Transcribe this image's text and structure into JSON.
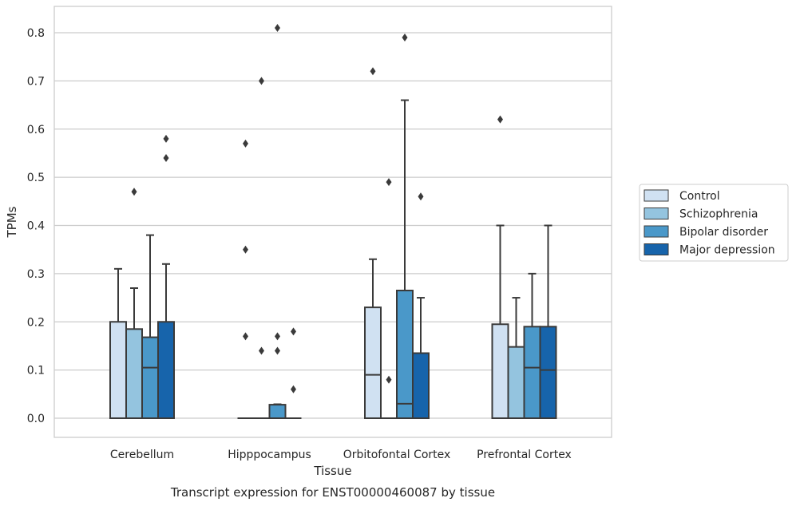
{
  "chart_data": {
    "type": "boxplot",
    "title": "",
    "caption": "Transcript expression for ENST00000460087 by tissue",
    "xlabel": "Tissue",
    "ylabel": "TPMs",
    "categories": [
      "Cerebellum",
      "Hipppocampus",
      "Orbitofontal Cortex",
      "Prefrontal Cortex"
    ],
    "ylim": [
      -0.04,
      0.85
    ],
    "yticks": [
      0.0,
      0.1,
      0.2,
      0.3,
      0.4,
      0.5,
      0.6,
      0.7,
      0.8
    ],
    "ytick_labels": [
      "0.0",
      "0.1",
      "0.2",
      "0.3",
      "0.4",
      "0.5",
      "0.6",
      "0.7",
      "0.8"
    ],
    "grid": true,
    "legend_position": "right",
    "series": [
      {
        "name": "Control",
        "color": "#d0e1f2",
        "boxes": [
          {
            "q1": 0.0,
            "median": 0.0,
            "q3": 0.2,
            "whisker_low": 0.0,
            "whisker_high": 0.31,
            "outliers": []
          },
          {
            "q1": 0.0,
            "median": 0.0,
            "q3": 0.0,
            "whisker_low": 0.0,
            "whisker_high": 0.0,
            "outliers": [
              0.17,
              0.35,
              0.57
            ]
          },
          {
            "q1": 0.0,
            "median": 0.09,
            "q3": 0.23,
            "whisker_low": 0.0,
            "whisker_high": 0.33,
            "outliers": [
              0.72
            ]
          },
          {
            "q1": 0.0,
            "median": 0.0,
            "q3": 0.195,
            "whisker_low": 0.0,
            "whisker_high": 0.4,
            "outliers": [
              0.62
            ]
          }
        ]
      },
      {
        "name": "Schizophrenia",
        "color": "#94c4df",
        "boxes": [
          {
            "q1": 0.0,
            "median": 0.0,
            "q3": 0.185,
            "whisker_low": 0.0,
            "whisker_high": 0.27,
            "outliers": [
              0.47
            ]
          },
          {
            "q1": 0.0,
            "median": 0.0,
            "q3": 0.0,
            "whisker_low": 0.0,
            "whisker_high": 0.0,
            "outliers": [
              0.14,
              0.7
            ]
          },
          {
            "q1": 0.0,
            "median": 0.0,
            "q3": 0.0,
            "whisker_low": 0.0,
            "whisker_high": 0.0,
            "outliers": [
              0.08,
              0.49
            ]
          },
          {
            "q1": 0.0,
            "median": 0.0,
            "q3": 0.148,
            "whisker_low": 0.0,
            "whisker_high": 0.25,
            "outliers": []
          }
        ]
      },
      {
        "name": "Bipolar disorder",
        "color": "#4a98c9",
        "boxes": [
          {
            "q1": 0.0,
            "median": 0.105,
            "q3": 0.168,
            "whisker_low": 0.0,
            "whisker_high": 0.38,
            "outliers": []
          },
          {
            "q1": 0.0,
            "median": 0.0,
            "q3": 0.028,
            "whisker_low": 0.0,
            "whisker_high": 0.029,
            "outliers": [
              0.14,
              0.17,
              0.81
            ]
          },
          {
            "q1": 0.0,
            "median": 0.03,
            "q3": 0.265,
            "whisker_low": 0.0,
            "whisker_high": 0.66,
            "outliers": [
              0.79
            ]
          },
          {
            "q1": 0.0,
            "median": 0.105,
            "q3": 0.19,
            "whisker_low": 0.0,
            "whisker_high": 0.3,
            "outliers": []
          }
        ]
      },
      {
        "name": "Major depression",
        "color": "#1764ab",
        "boxes": [
          {
            "q1": 0.0,
            "median": 0.0,
            "q3": 0.2,
            "whisker_low": 0.0,
            "whisker_high": 0.32,
            "outliers": [
              0.54,
              0.58
            ]
          },
          {
            "q1": 0.0,
            "median": 0.0,
            "q3": 0.0,
            "whisker_low": 0.0,
            "whisker_high": 0.0,
            "outliers": [
              0.06,
              0.18
            ]
          },
          {
            "q1": 0.0,
            "median": 0.0,
            "q3": 0.135,
            "whisker_low": 0.0,
            "whisker_high": 0.25,
            "outliers": [
              0.46
            ]
          },
          {
            "q1": 0.0,
            "median": 0.1,
            "q3": 0.19,
            "whisker_low": 0.0,
            "whisker_high": 0.4,
            "outliers": []
          }
        ]
      }
    ]
  }
}
